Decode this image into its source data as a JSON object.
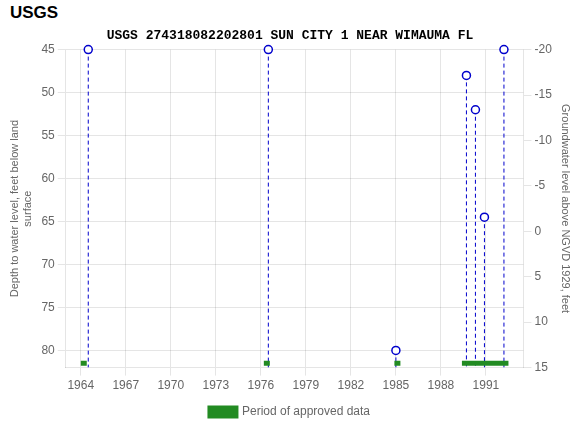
{
  "chart_data": {
    "type": "scatter",
    "title": "USGS 274318082202801 SUN CITY 1 NEAR WIMAUMA FL",
    "annotations": [
      "USGS"
    ],
    "xlabel": null,
    "ylabel": "Depth to water level, feet below land\nsurface",
    "y2label": "Groundwater level above NGVD 1929, feet",
    "xlim": [
      1963.0,
      1993.5
    ],
    "xticks": [
      1964,
      1967,
      1970,
      1973,
      1976,
      1979,
      1982,
      1985,
      1988,
      1991
    ],
    "ylim": [
      82,
      45
    ],
    "yticks": [
      45,
      50,
      55,
      60,
      65,
      70,
      75,
      80
    ],
    "y2lim": [
      15.0,
      -20.0
    ],
    "y2ticks": [
      15,
      10,
      5,
      0,
      -5,
      -10,
      -15,
      -20
    ],
    "grid": true,
    "legend": "bottom",
    "series": [
      {
        "type": "scatter",
        "color": "#0000cc",
        "marker": "circle",
        "line_style": "dashed",
        "x": [
          1964.5,
          1976.5,
          1985.0,
          1989.7,
          1990.3,
          1990.9,
          1992.2
        ],
        "values": [
          45,
          45,
          80,
          48,
          52,
          64.5,
          45
        ]
      },
      {
        "type": "bar",
        "orientation": "horizontal",
        "name": "Period of approved data",
        "color": "#228B22",
        "y": 81.5,
        "periods": [
          [
            1964.0,
            1964.4
          ],
          [
            1976.2,
            1976.6
          ],
          [
            1984.9,
            1985.3
          ],
          [
            1989.4,
            1992.5
          ]
        ]
      }
    ]
  }
}
